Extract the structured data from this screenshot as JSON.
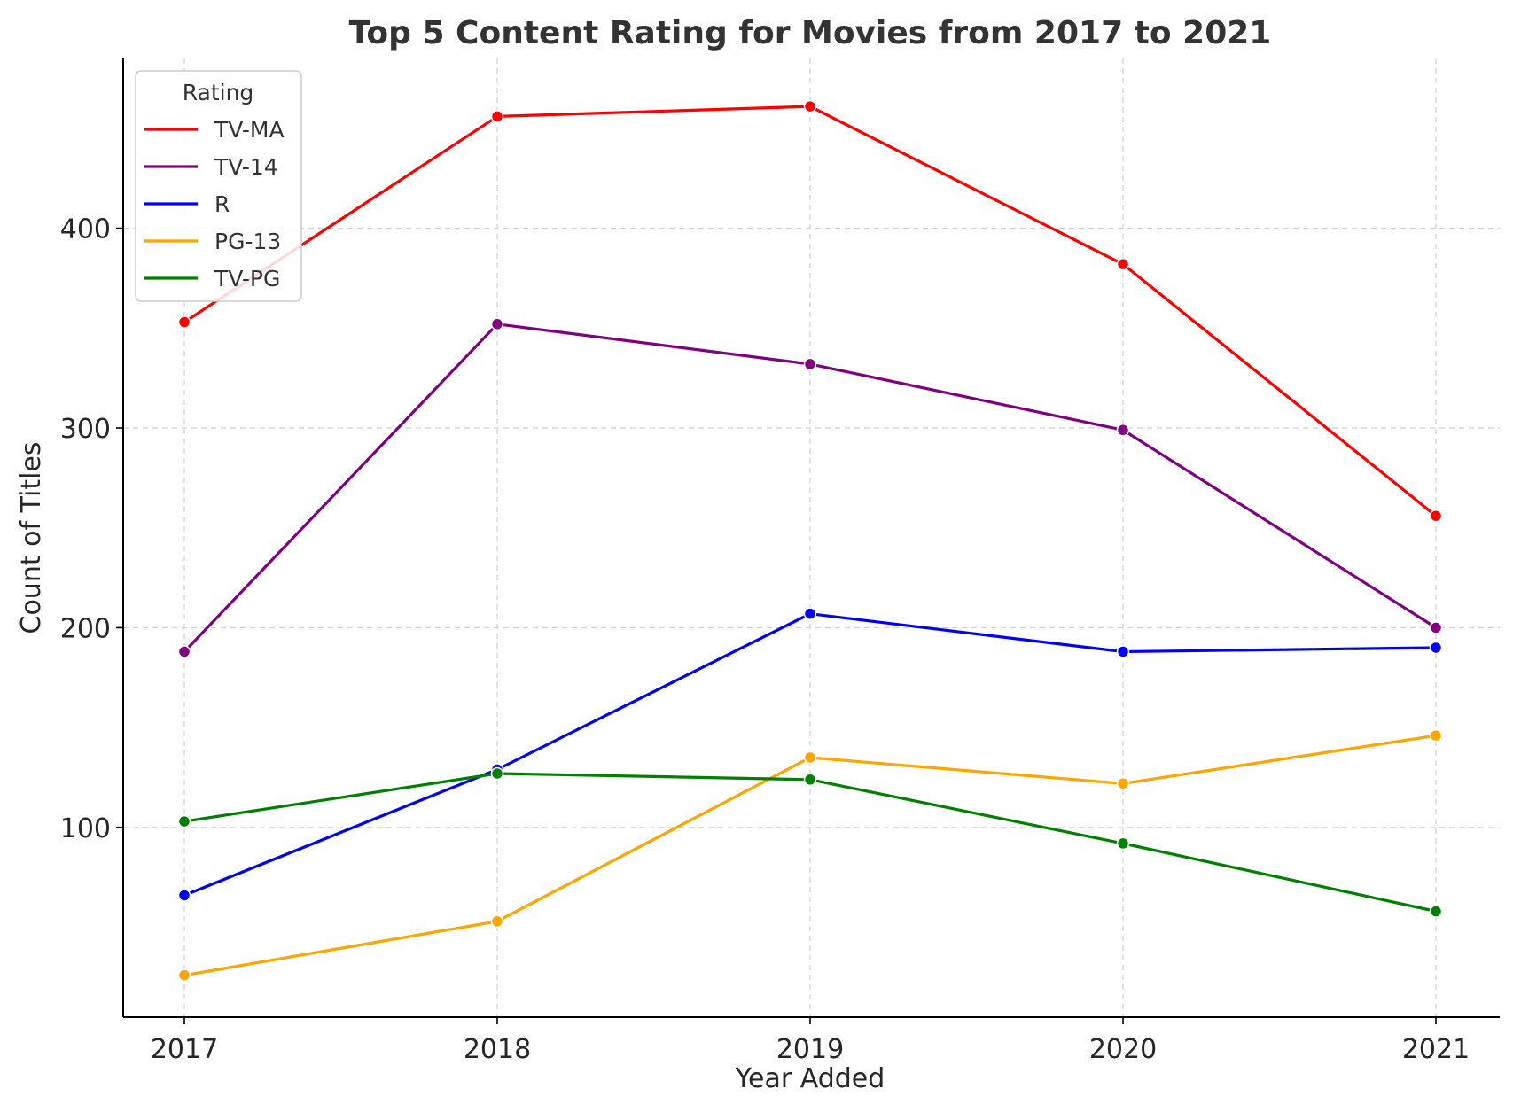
{
  "chart_data": {
    "type": "line",
    "title": "Top 5 Content Rating for Movies from 2017 to 2021",
    "xlabel": "Year Added",
    "ylabel": "Count of Titles",
    "x": [
      "2017",
      "2018",
      "2019",
      "2020",
      "2021"
    ],
    "ylim": [
      5,
      485
    ],
    "yticks": [
      "100",
      "200",
      "300",
      "400"
    ],
    "grid": true,
    "legend": {
      "title": "Rating",
      "placement": "top-left"
    },
    "series": [
      {
        "name": "TV-MA",
        "color": "#ff0000",
        "values": [
          353,
          456,
          461,
          382,
          256
        ]
      },
      {
        "name": "TV-14",
        "color": "#800080",
        "values": [
          188,
          352,
          332,
          299,
          200
        ]
      },
      {
        "name": "R",
        "color": "#0000ff",
        "values": [
          66,
          129,
          207,
          188,
          190
        ]
      },
      {
        "name": "PG-13",
        "color": "#ffa500",
        "values": [
          26,
          53,
          135,
          122,
          146
        ]
      },
      {
        "name": "TV-PG",
        "color": "#008000",
        "values": [
          103,
          127,
          124,
          92,
          58
        ]
      }
    ]
  }
}
